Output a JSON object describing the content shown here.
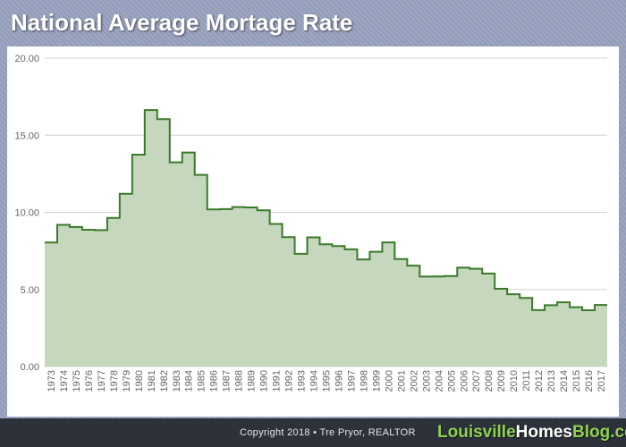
{
  "title": "National Average Mortage Rate",
  "footer": {
    "copyright": "Copyright 2018 • Tre Pryor, REALTOR",
    "brand_part1": "Louisville",
    "brand_part2": "Homes",
    "brand_part3": "Blog.com"
  },
  "colors": {
    "line": "#3a7a2a",
    "fill": "#c5d7bd",
    "grid": "#d0d0d0",
    "tick_text": "#666666"
  },
  "chart_data": {
    "type": "area",
    "step": true,
    "x": [
      "1973",
      "1974",
      "1975",
      "1976",
      "1977",
      "1978",
      "1979",
      "1980",
      "1981",
      "1982",
      "1983",
      "1984",
      "1985",
      "1986",
      "1987",
      "1988",
      "1989",
      "1990",
      "1991",
      "1992",
      "1993",
      "1994",
      "1995",
      "1996",
      "1997",
      "1998",
      "1999",
      "2000",
      "2001",
      "2002",
      "2003",
      "2004",
      "2005",
      "2006",
      "2007",
      "2008",
      "2009",
      "2010",
      "2011",
      "2012",
      "2013",
      "2014",
      "2015",
      "2016",
      "2017"
    ],
    "values": [
      8.04,
      9.19,
      9.05,
      8.87,
      8.85,
      9.64,
      11.2,
      13.74,
      16.63,
      16.04,
      13.24,
      13.88,
      12.43,
      10.19,
      10.21,
      10.34,
      10.32,
      10.13,
      9.25,
      8.39,
      7.31,
      8.38,
      7.93,
      7.81,
      7.6,
      6.94,
      7.44,
      8.05,
      6.97,
      6.54,
      5.83,
      5.84,
      5.87,
      6.41,
      6.34,
      6.03,
      5.04,
      4.69,
      4.45,
      3.66,
      3.98,
      4.17,
      3.85,
      3.65,
      3.99
    ],
    "y_ticks": [
      "0.00",
      "5.00",
      "10.00",
      "15.00",
      "20.00"
    ],
    "ylim": [
      0,
      20
    ],
    "grid": true,
    "title": "National Average Mortage Rate",
    "xlabel": "",
    "ylabel": ""
  }
}
